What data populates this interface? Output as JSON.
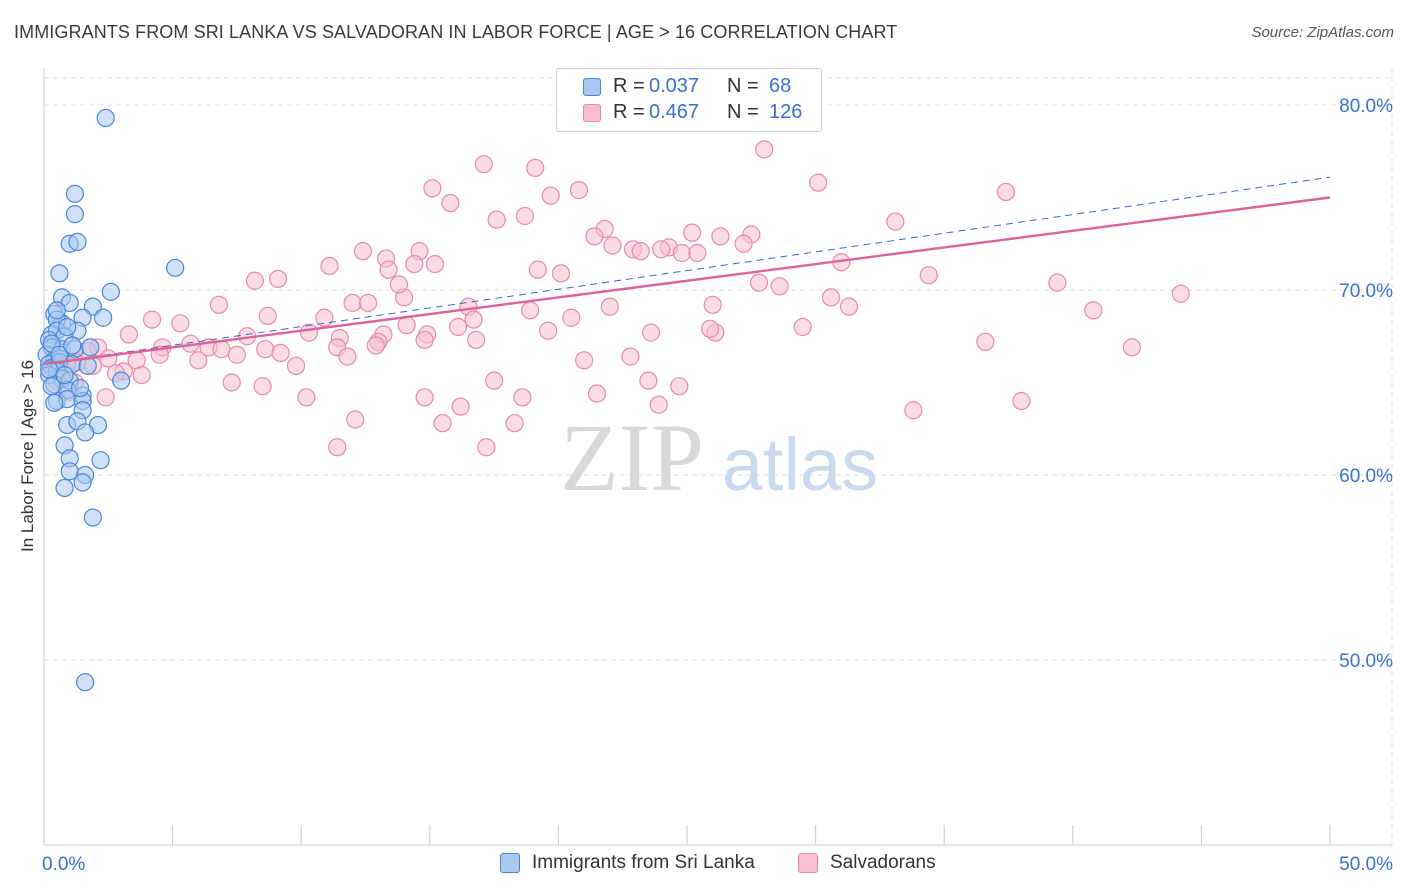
{
  "header": {
    "title": "IMMIGRANTS FROM SRI LANKA VS SALVADORAN IN LABOR FORCE | AGE > 16 CORRELATION CHART",
    "source": "Source: ZipAtlas.com"
  },
  "watermark": {
    "zip": "ZIP",
    "atlas": "atlas"
  },
  "legend": {
    "rows": [
      {
        "r_label": "R =",
        "r_value": "0.037",
        "n_label": "N =",
        "n_value": "68"
      },
      {
        "r_label": "R =",
        "r_value": "0.467",
        "n_label": "N =",
        "n_value": "126"
      }
    ]
  },
  "bottom_legend": {
    "series1": "Immigrants from Sri Lanka",
    "series2": "Salvadorans"
  },
  "chart_data": {
    "type": "scatter",
    "xlabel": "",
    "ylabel": "In Labor Force | Age > 16",
    "xlim": [
      0,
      50
    ],
    "ylim": [
      40,
      82
    ],
    "x_tick_labels": [
      "0.0%",
      "50.0%"
    ],
    "y_ticks": [
      50,
      60,
      70,
      80
    ],
    "y_tick_labels": [
      "50.0%",
      "60.0%",
      "70.0%",
      "80.0%"
    ],
    "grid": true,
    "colors": {
      "series1_fill": "#aac8f0",
      "series1_stroke": "#4a86d8",
      "series1_line": "#3a66c8",
      "series2_fill": "#f7bfd0",
      "series2_stroke": "#e889aa",
      "series2_line": "#e0609a",
      "tick_label": "#3b6fd0"
    },
    "series": [
      {
        "name": "Immigrants from Sri Lanka",
        "trend": {
          "x0": 0,
          "y0": 66.0,
          "x1": 50,
          "y1": 76.1
        },
        "points": [
          [
            2.4,
            79.3
          ],
          [
            1.2,
            75.2
          ],
          [
            1.2,
            74.1
          ],
          [
            1.0,
            72.5
          ],
          [
            1.3,
            72.6
          ],
          [
            5.1,
            71.2
          ],
          [
            0.6,
            70.9
          ],
          [
            2.6,
            69.9
          ],
          [
            0.7,
            69.6
          ],
          [
            1.0,
            69.3
          ],
          [
            1.9,
            69.1
          ],
          [
            0.4,
            68.7
          ],
          [
            0.7,
            68.2
          ],
          [
            1.5,
            68.5
          ],
          [
            0.5,
            68.4
          ],
          [
            2.3,
            68.5
          ],
          [
            0.3,
            67.6
          ],
          [
            0.5,
            67.8
          ],
          [
            1.3,
            67.8
          ],
          [
            0.8,
            67.5
          ],
          [
            0.2,
            67.3
          ],
          [
            0.3,
            66.9
          ],
          [
            0.7,
            66.8
          ],
          [
            1.2,
            66.8
          ],
          [
            1.8,
            66.9
          ],
          [
            0.1,
            66.5
          ],
          [
            0.4,
            66.2
          ],
          [
            0.6,
            66.3
          ],
          [
            0.2,
            66.0
          ],
          [
            0.3,
            65.8
          ],
          [
            0.5,
            65.6
          ],
          [
            0.2,
            65.4
          ],
          [
            0.7,
            65.2
          ],
          [
            1.0,
            65.1
          ],
          [
            0.4,
            64.9
          ],
          [
            0.9,
            64.6
          ],
          [
            1.5,
            64.3
          ],
          [
            0.5,
            64.0
          ],
          [
            0.9,
            64.1
          ],
          [
            1.5,
            64.0
          ],
          [
            3.0,
            65.1
          ],
          [
            1.5,
            63.5
          ],
          [
            0.9,
            62.7
          ],
          [
            1.3,
            62.9
          ],
          [
            2.1,
            62.7
          ],
          [
            1.6,
            62.3
          ],
          [
            0.8,
            61.6
          ],
          [
            1.0,
            60.9
          ],
          [
            2.2,
            60.8
          ],
          [
            1.0,
            60.2
          ],
          [
            1.6,
            60.0
          ],
          [
            1.5,
            59.6
          ],
          [
            0.8,
            59.3
          ],
          [
            1.9,
            57.7
          ],
          [
            1.6,
            48.8
          ],
          [
            0.6,
            66.1
          ],
          [
            1.1,
            66.0
          ],
          [
            0.3,
            67.1
          ],
          [
            0.9,
            68.0
          ],
          [
            1.4,
            64.7
          ],
          [
            0.2,
            65.7
          ],
          [
            0.8,
            65.4
          ],
          [
            0.4,
            63.9
          ],
          [
            0.6,
            66.5
          ],
          [
            1.1,
            67.0
          ],
          [
            0.3,
            64.8
          ],
          [
            1.7,
            65.9
          ],
          [
            0.5,
            68.9
          ]
        ]
      },
      {
        "name": "Salvadorans",
        "trend": {
          "x0": 0,
          "y0": 66.0,
          "x1": 50,
          "y1": 75.0
        },
        "points": [
          [
            28.0,
            77.6
          ],
          [
            17.1,
            76.8
          ],
          [
            19.1,
            76.6
          ],
          [
            30.1,
            75.8
          ],
          [
            15.1,
            75.5
          ],
          [
            20.8,
            75.4
          ],
          [
            37.4,
            75.3
          ],
          [
            19.7,
            75.1
          ],
          [
            15.8,
            74.7
          ],
          [
            18.7,
            74.0
          ],
          [
            17.6,
            73.8
          ],
          [
            33.1,
            73.7
          ],
          [
            21.8,
            73.3
          ],
          [
            21.4,
            72.9
          ],
          [
            25.2,
            73.1
          ],
          [
            27.5,
            73.0
          ],
          [
            26.3,
            72.9
          ],
          [
            22.1,
            72.4
          ],
          [
            22.9,
            72.2
          ],
          [
            24.3,
            72.3
          ],
          [
            23.2,
            72.1
          ],
          [
            24.0,
            72.2
          ],
          [
            24.8,
            72.0
          ],
          [
            25.4,
            72.0
          ],
          [
            14.6,
            72.1
          ],
          [
            12.4,
            72.1
          ],
          [
            13.3,
            71.7
          ],
          [
            14.4,
            71.4
          ],
          [
            15.2,
            71.4
          ],
          [
            11.1,
            71.3
          ],
          [
            19.2,
            71.1
          ],
          [
            9.1,
            70.6
          ],
          [
            13.4,
            71.1
          ],
          [
            34.4,
            70.8
          ],
          [
            20.1,
            70.9
          ],
          [
            8.2,
            70.5
          ],
          [
            27.8,
            70.4
          ],
          [
            28.6,
            70.2
          ],
          [
            44.2,
            69.8
          ],
          [
            39.4,
            70.4
          ],
          [
            12.0,
            69.3
          ],
          [
            12.6,
            69.3
          ],
          [
            14.0,
            69.6
          ],
          [
            6.8,
            69.2
          ],
          [
            16.5,
            69.1
          ],
          [
            22.0,
            69.1
          ],
          [
            26.0,
            69.2
          ],
          [
            31.3,
            69.1
          ],
          [
            40.8,
            68.9
          ],
          [
            18.9,
            68.9
          ],
          [
            8.7,
            68.6
          ],
          [
            10.9,
            68.5
          ],
          [
            16.7,
            68.4
          ],
          [
            4.2,
            68.4
          ],
          [
            5.3,
            68.2
          ],
          [
            14.1,
            68.1
          ],
          [
            16.1,
            68.0
          ],
          [
            23.6,
            67.7
          ],
          [
            26.1,
            67.7
          ],
          [
            25.9,
            67.9
          ],
          [
            10.3,
            67.7
          ],
          [
            11.5,
            67.4
          ],
          [
            13.2,
            67.6
          ],
          [
            14.9,
            67.6
          ],
          [
            16.8,
            67.3
          ],
          [
            3.3,
            67.6
          ],
          [
            2.1,
            66.9
          ],
          [
            4.6,
            66.9
          ],
          [
            5.7,
            67.1
          ],
          [
            6.4,
            66.9
          ],
          [
            6.9,
            66.8
          ],
          [
            8.6,
            66.8
          ],
          [
            9.2,
            66.6
          ],
          [
            11.4,
            66.9
          ],
          [
            13.0,
            67.2
          ],
          [
            14.8,
            67.3
          ],
          [
            7.5,
            66.5
          ],
          [
            11.8,
            66.4
          ],
          [
            3.6,
            66.2
          ],
          [
            2.5,
            66.3
          ],
          [
            1.9,
            65.9
          ],
          [
            1.3,
            66.1
          ],
          [
            3.1,
            65.6
          ],
          [
            3.8,
            65.4
          ],
          [
            0.7,
            65.3
          ],
          [
            0.5,
            65.1
          ],
          [
            1.2,
            65.0
          ],
          [
            7.3,
            65.0
          ],
          [
            8.5,
            64.8
          ],
          [
            17.5,
            65.1
          ],
          [
            23.5,
            65.1
          ],
          [
            10.2,
            64.2
          ],
          [
            14.8,
            64.2
          ],
          [
            18.6,
            64.2
          ],
          [
            21.5,
            64.4
          ],
          [
            23.9,
            63.8
          ],
          [
            16.2,
            63.7
          ],
          [
            12.1,
            63.0
          ],
          [
            15.5,
            62.8
          ],
          [
            18.3,
            62.8
          ],
          [
            11.4,
            61.5
          ],
          [
            17.2,
            61.5
          ],
          [
            33.8,
            63.5
          ],
          [
            1.0,
            64.5
          ],
          [
            2.8,
            65.5
          ],
          [
            4.5,
            66.5
          ],
          [
            0.9,
            66.0
          ],
          [
            1.7,
            66.7
          ],
          [
            6.0,
            66.2
          ],
          [
            9.8,
            65.9
          ],
          [
            12.9,
            67.0
          ],
          [
            20.5,
            68.5
          ],
          [
            29.5,
            68.0
          ],
          [
            36.6,
            67.2
          ],
          [
            42.3,
            66.9
          ],
          [
            38.0,
            64.0
          ],
          [
            24.7,
            64.8
          ],
          [
            31.0,
            71.5
          ],
          [
            27.2,
            72.5
          ],
          [
            13.8,
            70.3
          ],
          [
            19.6,
            67.8
          ],
          [
            22.8,
            66.4
          ],
          [
            21.0,
            66.2
          ],
          [
            7.9,
            67.5
          ],
          [
            2.4,
            64.2
          ],
          [
            30.6,
            69.6
          ]
        ]
      }
    ]
  }
}
